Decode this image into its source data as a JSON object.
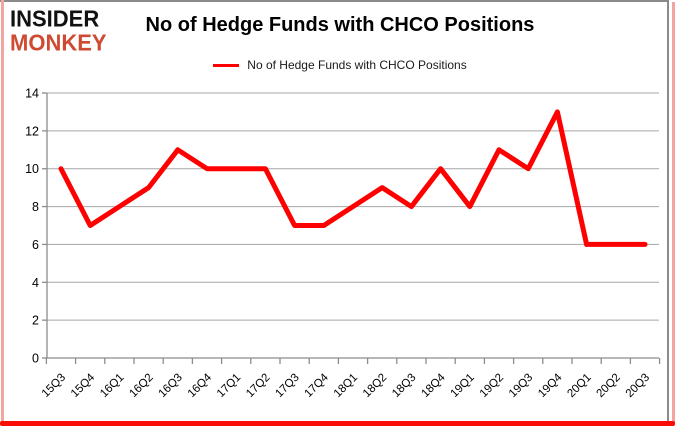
{
  "header": {
    "logo_line1": "INSIDER",
    "logo_line2": "MONKEY",
    "title": "No of Hedge Funds with CHCO Positions"
  },
  "legend": {
    "label": "No of Hedge Funds with CHCO Positions"
  },
  "chart_data": {
    "type": "line",
    "title": "No of Hedge Funds with CHCO Positions",
    "categories": [
      "15Q3",
      "15Q4",
      "16Q1",
      "16Q2",
      "16Q3",
      "16Q4",
      "17Q1",
      "17Q2",
      "17Q3",
      "17Q4",
      "18Q1",
      "18Q2",
      "18Q3",
      "18Q4",
      "19Q1",
      "19Q2",
      "19Q3",
      "19Q4",
      "20Q1",
      "20Q2",
      "20Q3"
    ],
    "series": [
      {
        "name": "No of Hedge Funds with CHCO Positions",
        "values": [
          10,
          7,
          8,
          9,
          11,
          10,
          10,
          10,
          7,
          7,
          8,
          9,
          8,
          10,
          8,
          11,
          10,
          13,
          6,
          6,
          6
        ]
      }
    ],
    "xlabel": "",
    "ylabel": "",
    "ylim": [
      0,
      14
    ],
    "ytick_step": 2,
    "grid": true,
    "legend_position": "top-center"
  },
  "colors": {
    "line": "#fe0000",
    "logo_red": "#cf4a32",
    "logo_black": "#111111",
    "grid": "#a6a6a6",
    "axis": "#8c8c8c",
    "tick_label": "#000000"
  }
}
